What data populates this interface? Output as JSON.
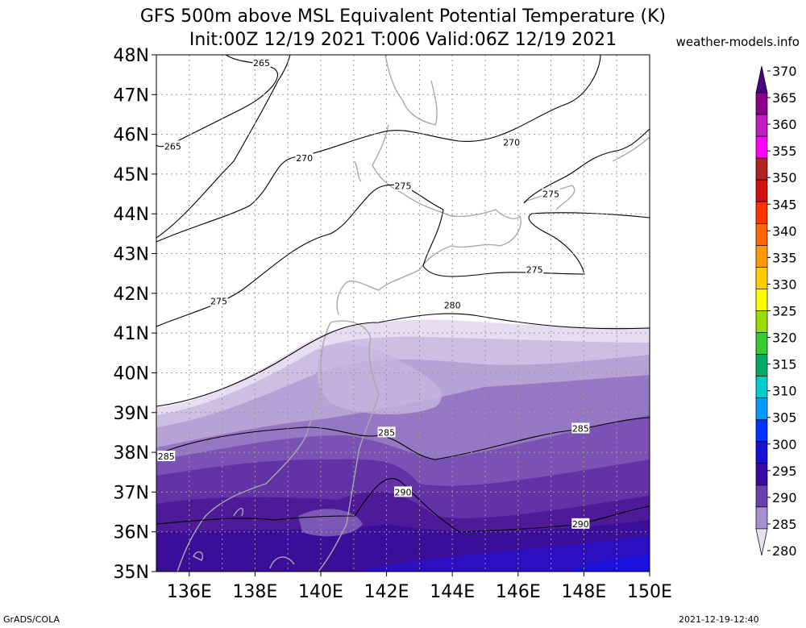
{
  "title_line1": "GFS 500m above MSL Equivalent Potential Temperature (K)",
  "title_line2": "Init:00Z 12/19 2021 T:006 Valid:06Z 12/19 2021",
  "site_label": "weather-models.info",
  "footer_left": "GrADS/COLA",
  "footer_right": "2021-12-19-12:40",
  "map": {
    "lat_range": [
      35,
      48
    ],
    "lon_range": [
      135,
      150
    ],
    "lat_ticks": [
      "48N",
      "47N",
      "46N",
      "45N",
      "44N",
      "43N",
      "42N",
      "41N",
      "40N",
      "39N",
      "38N",
      "37N",
      "36N",
      "35N"
    ],
    "lon_ticks": [
      "136E",
      "138E",
      "140E",
      "142E",
      "144E",
      "146E",
      "148E",
      "150E"
    ],
    "contour_labels": [
      {
        "text": "265",
        "lon": 138.2,
        "lat": 47.8
      },
      {
        "text": "265",
        "lon": 135.5,
        "lat": 45.7
      },
      {
        "text": "270",
        "lon": 139.5,
        "lat": 45.4
      },
      {
        "text": "270",
        "lon": 145.8,
        "lat": 45.8
      },
      {
        "text": "275",
        "lon": 142.5,
        "lat": 44.7
      },
      {
        "text": "275",
        "lon": 147.0,
        "lat": 44.5
      },
      {
        "text": "275",
        "lon": 136.9,
        "lat": 41.8
      },
      {
        "text": "275",
        "lon": 146.5,
        "lat": 42.6
      },
      {
        "text": "280",
        "lon": 144.0,
        "lat": 41.7
      },
      {
        "text": "285",
        "lon": 142.0,
        "lat": 38.5
      },
      {
        "text": "285",
        "lon": 135.3,
        "lat": 37.9
      },
      {
        "text": "285",
        "lon": 147.9,
        "lat": 38.6
      },
      {
        "text": "290",
        "lon": 142.5,
        "lat": 37.0
      },
      {
        "text": "290",
        "lon": 147.9,
        "lat": 36.2
      }
    ]
  },
  "colorbar": {
    "labels": [
      "370",
      "365",
      "360",
      "355",
      "350",
      "345",
      "340",
      "335",
      "330",
      "325",
      "320",
      "315",
      "310",
      "305",
      "300",
      "295",
      "290",
      "285",
      "280"
    ],
    "colors": [
      "#4b0082",
      "#8b008b",
      "#c020c0",
      "#ff00ff",
      "#b22222",
      "#d21010",
      "#ff3300",
      "#ff6600",
      "#ff9900",
      "#ffcc00",
      "#ffff00",
      "#99dd00",
      "#33cc33",
      "#00aa66",
      "#00cccc",
      "#0099ff",
      "#0033ff",
      "#1a0fd4",
      "#3a0aa0",
      "#6a40b0",
      "#a890d0",
      "#e8e0f0"
    ]
  }
}
